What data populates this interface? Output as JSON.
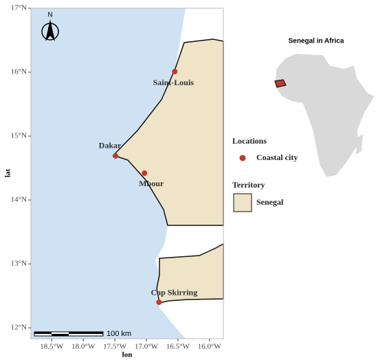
{
  "map": {
    "xlabel": "lon",
    "ylabel": "lat",
    "xlim": [
      -18.83,
      -15.78
    ],
    "ylim": [
      11.83,
      17
    ],
    "xticks": [
      {
        "value": -18.5,
        "label": "18.5°W"
      },
      {
        "value": -18,
        "label": "18.0°W"
      },
      {
        "value": -17.5,
        "label": "17.5°W"
      },
      {
        "value": -17,
        "label": "17.0°W"
      },
      {
        "value": -16.5,
        "label": "16.5°W"
      },
      {
        "value": -16,
        "label": "16.0°W"
      }
    ],
    "yticks": [
      {
        "value": 12,
        "label": "12°N"
      },
      {
        "value": 13,
        "label": "13°N"
      },
      {
        "value": 14,
        "label": "14°N"
      },
      {
        "value": 15,
        "label": "15°N"
      },
      {
        "value": 16,
        "label": "16°N"
      },
      {
        "value": 17,
        "label": "17°N"
      }
    ],
    "cities": [
      {
        "name": "Saint-Louis",
        "lon": -16.55,
        "lat": 16.01
      },
      {
        "name": "Dakar",
        "lon": -17.49,
        "lat": 14.69
      },
      {
        "name": "Mbour",
        "lon": -17.03,
        "lat": 14.42
      },
      {
        "name": "Cap Skirring",
        "lon": -16.8,
        "lat": 12.4
      }
    ],
    "point_color": "#c0392b",
    "north": "N",
    "scale_bar": "100 km"
  },
  "legend": {
    "locations_title": "Locations",
    "location_label": "Coastal city",
    "territory_title": "Territory",
    "territory_label": "Senegal"
  },
  "inset": {
    "title": "Senegal in Africa"
  }
}
